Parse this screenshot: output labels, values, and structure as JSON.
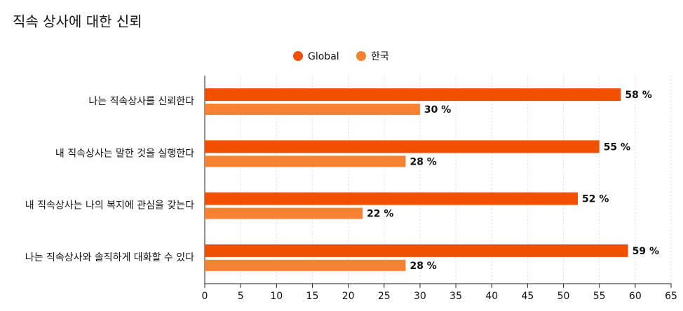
{
  "chart_data": {
    "type": "bar",
    "orientation": "horizontal",
    "title": "직속 상사에 대한 신뢰",
    "categories": [
      "나는 직속상사를 신뢰한다",
      "내 직속상사는 말한 것을 실행한다",
      "내 직속상사는 나의 복지에 관심을 갖는다",
      "나는 직속상사와 솔직하게 대화할 수 있다"
    ],
    "series": [
      {
        "name": "Global",
        "color": "#f05000",
        "values": [
          58,
          55,
          52,
          59
        ],
        "value_labels": [
          "58 %",
          "55 %",
          "52 %",
          "59 %"
        ]
      },
      {
        "name": "한국",
        "color": "#f58232",
        "values": [
          30,
          28,
          22,
          28
        ],
        "value_labels": [
          "30 %",
          "28 %",
          "22 %",
          "28 %"
        ]
      }
    ],
    "xlim": [
      0,
      65
    ],
    "xticks": [
      0,
      5,
      10,
      15,
      20,
      25,
      30,
      35,
      40,
      45,
      50,
      55,
      60,
      65
    ],
    "grid": true
  }
}
